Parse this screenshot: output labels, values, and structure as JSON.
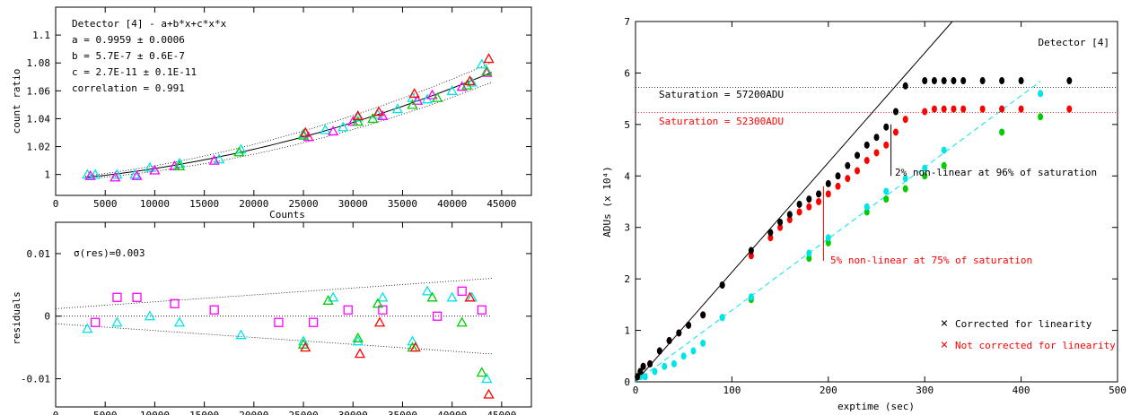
{
  "chart_data": [
    {
      "type": "scatter",
      "panel": "top-left",
      "xlabel": "Counts",
      "ylabel": "count ratio",
      "xlim": [
        0,
        48000
      ],
      "ylim": [
        0.985,
        1.12
      ],
      "xticks": [
        "0",
        "5000",
        "10000",
        "15000",
        "20000",
        "25000",
        "30000",
        "35000",
        "40000",
        "45000"
      ],
      "yticks": [
        "1",
        "1.02",
        "1.04",
        "1.06",
        "1.08",
        "1.1"
      ],
      "annotations": [
        "Detector [4] - a+b*x+c*x*x",
        "a = 0.9959 ± 0.0006",
        "b = 5.7E-7 ± 0.6E-7",
        "c = 2.7E-11 ± 0.1E-11",
        "correlation = 0.991"
      ],
      "fit": {
        "a": 0.9959,
        "b": 5.7e-07,
        "c": 2.7e-11
      },
      "series": [
        {
          "color": "#00e5e5",
          "marker": "triangle",
          "x": [
            3200,
            4000,
            6200,
            8000,
            9500,
            12500,
            16500,
            18700,
            25000,
            27200,
            29000,
            30500,
            32500,
            34500,
            36000,
            37500,
            40000,
            42000,
            43000
          ],
          "y": [
            1.0,
            1.0,
            1.0,
            1.0,
            1.005,
            1.008,
            1.011,
            1.018,
            1.029,
            1.032,
            1.034,
            1.041,
            1.043,
            1.047,
            1.055,
            1.054,
            1.06,
            1.066,
            1.079
          ]
        },
        {
          "color": "#ff00ff",
          "marker": "triangle",
          "x": [
            3500,
            6000,
            8200,
            10000,
            12000,
            16000,
            25500,
            28000,
            30000,
            33000,
            36500,
            38000,
            41000,
            43500
          ],
          "y": [
            0.999,
            0.998,
            0.999,
            1.003,
            1.006,
            1.01,
            1.027,
            1.031,
            1.038,
            1.042,
            1.053,
            1.057,
            1.063,
            1.073
          ]
        },
        {
          "color": "#00cc00",
          "marker": "triangle",
          "x": [
            12500,
            18500,
            25000,
            30500,
            32000,
            36000,
            38500,
            41500,
            43500
          ],
          "y": [
            1.006,
            1.016,
            1.028,
            1.038,
            1.04,
            1.05,
            1.055,
            1.064,
            1.074
          ]
        },
        {
          "color": "#ff0000",
          "marker": "triangle",
          "x": [
            25200,
            30500,
            32600,
            36200,
            41800,
            43700
          ],
          "y": [
            1.03,
            1.042,
            1.045,
            1.058,
            1.067,
            1.083
          ]
        }
      ]
    },
    {
      "type": "scatter",
      "panel": "bottom-left",
      "xlabel": "",
      "ylabel": "residuals",
      "xlim": [
        0,
        48000
      ],
      "ylim": [
        -0.0145,
        0.015
      ],
      "xticks": [
        "0",
        "5000",
        "10000",
        "15000",
        "20000",
        "25000",
        "30000",
        "35000",
        "40000",
        "45000"
      ],
      "yticks": [
        "-0.01",
        "0",
        "0.01"
      ],
      "annotation": "σ(res)=0.003",
      "series": [
        {
          "color": "#00e5e5",
          "marker": "triangle",
          "x": [
            3200,
            6200,
            9500,
            12500,
            18700,
            25000,
            28000,
            30500,
            33000,
            36000,
            37500,
            40000,
            42000,
            43500
          ],
          "y": [
            -0.002,
            -0.001,
            0.0,
            -0.001,
            -0.003,
            -0.004,
            0.003,
            -0.004,
            0.003,
            -0.004,
            0.004,
            0.003,
            0.003,
            -0.01
          ]
        },
        {
          "color": "#ff00ff",
          "marker": "square",
          "x": [
            4000,
            6200,
            8200,
            12000,
            16000,
            22500,
            26000,
            29500,
            33000,
            38500,
            41000,
            43000
          ],
          "y": [
            -0.001,
            0.003,
            0.003,
            0.002,
            0.001,
            -0.001,
            -0.001,
            0.001,
            0.001,
            0.0,
            0.004,
            0.001
          ]
        },
        {
          "color": "#00cc00",
          "marker": "triangle",
          "x": [
            25000,
            27500,
            30500,
            32500,
            36000,
            38000,
            41000,
            43000
          ],
          "y": [
            -0.0045,
            0.0025,
            -0.0035,
            0.002,
            -0.005,
            0.003,
            -0.001,
            -0.009
          ]
        },
        {
          "color": "#ff0000",
          "marker": "triangle",
          "x": [
            25200,
            30700,
            32700,
            36300,
            41800,
            43700
          ],
          "y": [
            -0.005,
            -0.006,
            -0.001,
            -0.005,
            0.003,
            -0.0125
          ]
        }
      ]
    },
    {
      "type": "scatter",
      "panel": "right",
      "xlabel": "exptime (sec)",
      "ylabel": "ADUs (x 10⁴)",
      "xlim": [
        0,
        500
      ],
      "ylim": [
        0,
        7
      ],
      "xticks": [
        "0",
        "100",
        "200",
        "300",
        "400",
        "500"
      ],
      "yticks": [
        "0",
        "1",
        "2",
        "3",
        "4",
        "5",
        "6",
        "7"
      ],
      "annotations": {
        "detector": "Detector [4]",
        "sat_black": "Saturation = 57200ADU",
        "sat_red": "Saturation = 52300ADU",
        "nonlin2": "2% non-linear at 96% of saturation",
        "nonlin5": "5% non-linear at 75% of saturation"
      },
      "saturation_levels": [
        5.72,
        5.23
      ],
      "legend": [
        {
          "label": "Corrected for linearity",
          "color": "#000000"
        },
        {
          "label": "Not corrected for linearity",
          "color": "#ff0000"
        }
      ],
      "legend_position": "bottom-right",
      "series": [
        {
          "name": "Corrected for linearity",
          "color": "#000000",
          "x": [
            2,
            5,
            8,
            15,
            25,
            35,
            45,
            55,
            70,
            90,
            120,
            140,
            150,
            160,
            170,
            180,
            190,
            200,
            210,
            220,
            230,
            240,
            250,
            260,
            270,
            280,
            300,
            310,
            320,
            330,
            340,
            360,
            380,
            400,
            450
          ],
          "y": [
            0.1,
            0.2,
            0.3,
            0.35,
            0.6,
            0.8,
            0.95,
            1.1,
            1.3,
            1.88,
            2.55,
            2.9,
            3.1,
            3.25,
            3.45,
            3.55,
            3.65,
            3.85,
            4.0,
            4.2,
            4.4,
            4.6,
            4.75,
            4.95,
            5.25,
            5.75,
            5.85,
            5.85,
            5.85,
            5.85,
            5.85,
            5.85,
            5.85,
            5.85,
            5.85
          ]
        },
        {
          "name": "Not corrected for linearity",
          "color": "#ff0000",
          "x": [
            2,
            5,
            8,
            15,
            25,
            35,
            45,
            55,
            70,
            90,
            120,
            140,
            150,
            160,
            170,
            180,
            190,
            200,
            210,
            220,
            230,
            240,
            250,
            260,
            270,
            280,
            300,
            310,
            320,
            330,
            340,
            360,
            380,
            400,
            450
          ],
          "y": [
            0.1,
            0.2,
            0.3,
            0.35,
            0.6,
            0.8,
            0.95,
            1.1,
            1.3,
            1.88,
            2.45,
            2.8,
            3.0,
            3.15,
            3.3,
            3.4,
            3.5,
            3.65,
            3.8,
            3.95,
            4.1,
            4.3,
            4.45,
            4.6,
            4.85,
            5.1,
            5.25,
            5.3,
            5.3,
            5.3,
            5.3,
            5.3,
            5.3,
            5.3,
            5.3
          ]
        },
        {
          "color": "#00e5e5",
          "x": [
            5,
            10,
            20,
            30,
            40,
            50,
            60,
            70,
            90,
            120,
            180,
            200,
            240,
            260,
            280,
            300,
            320,
            380,
            420
          ],
          "y": [
            0.1,
            0.1,
            0.2,
            0.3,
            0.35,
            0.5,
            0.6,
            0.75,
            1.25,
            1.65,
            2.5,
            2.8,
            3.4,
            3.7,
            3.95,
            4.15,
            4.5,
            5.3,
            5.6
          ]
        },
        {
          "color": "#00cc00",
          "x": [
            90,
            120,
            180,
            200,
            240,
            260,
            280,
            300,
            320,
            380,
            420
          ],
          "y": [
            1.25,
            1.6,
            2.4,
            2.7,
            3.3,
            3.55,
            3.75,
            4.0,
            4.2,
            4.85,
            5.15
          ]
        }
      ],
      "fits": [
        {
          "color": "#000000",
          "style": "solid",
          "slope": 0.0213,
          "intercept": 0.0
        },
        {
          "color": "#00e5e5",
          "style": "dashed",
          "slope": 0.0139,
          "intercept": 0.0
        }
      ]
    }
  ]
}
